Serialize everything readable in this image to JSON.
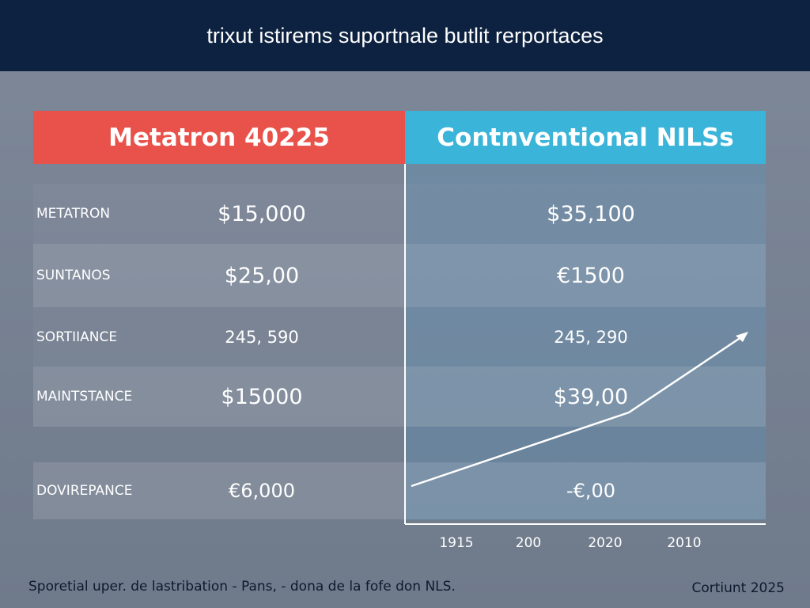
{
  "header": {
    "title": "trixut istirems suportnale butlit rerportaces"
  },
  "table": {
    "columns": [
      "Metatron 40225",
      "Contnventional NILSs"
    ],
    "rows": [
      [
        "Metatron",
        "$15,000",
        "$35,100"
      ],
      [
        "Suntanos",
        "$25,00",
        "€1500"
      ],
      [
        "Sortiiance",
        "245, 590",
        "245, 290"
      ],
      [
        "Maintstance",
        "$15000",
        "$39,00"
      ],
      [
        "Dovirepance",
        "€6,000",
        "-€,00"
      ]
    ]
  },
  "axis": {
    "labels": [
      "1915",
      "200",
      "2020",
      "2010"
    ]
  },
  "footer": {
    "note": "Sporetial uper. de lastribation - Pans, - dona de la fofe don NLS.",
    "credit": "Cortiunt 2025"
  }
}
